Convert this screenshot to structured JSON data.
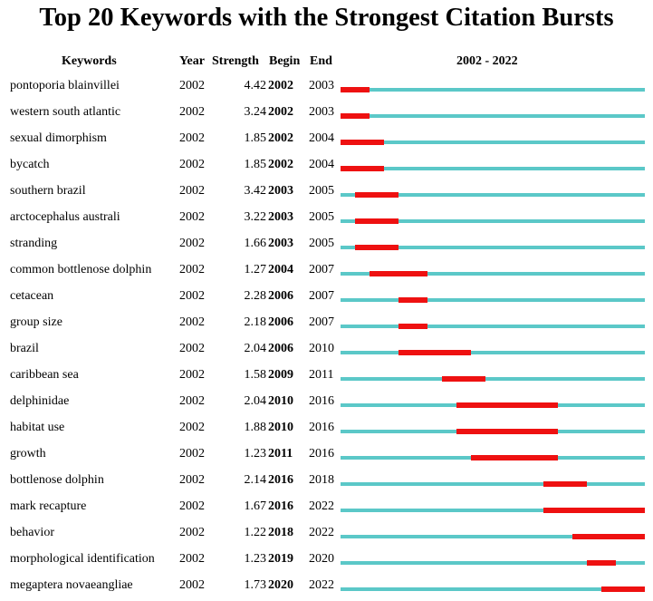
{
  "title": "Top 20 Keywords with the Strongest Citation Bursts",
  "headers": {
    "keywords": "Keywords",
    "year": "Year",
    "strength": "Strength",
    "begin": "Begin",
    "end": "End",
    "range": "2002 - 2022"
  },
  "colors": {
    "baseline": "#5bc8c8",
    "burst": "#ee1111"
  },
  "chart_data": {
    "type": "table",
    "range": [
      2002,
      2022
    ],
    "rows": [
      {
        "keyword": "pontoporia blainvillei",
        "year": "2002",
        "strength": "4.42",
        "begin": "2002",
        "end": "2003"
      },
      {
        "keyword": "western south atlantic",
        "year": "2002",
        "strength": "3.24",
        "begin": "2002",
        "end": "2003"
      },
      {
        "keyword": "sexual dimorphism",
        "year": "2002",
        "strength": "1.85",
        "begin": "2002",
        "end": "2004"
      },
      {
        "keyword": "bycatch",
        "year": "2002",
        "strength": "1.85",
        "begin": "2002",
        "end": "2004"
      },
      {
        "keyword": "southern brazil",
        "year": "2002",
        "strength": "3.42",
        "begin": "2003",
        "end": "2005"
      },
      {
        "keyword": "arctocephalus australi",
        "year": "2002",
        "strength": "3.22",
        "begin": "2003",
        "end": "2005"
      },
      {
        "keyword": "stranding",
        "year": "2002",
        "strength": "1.66",
        "begin": "2003",
        "end": "2005"
      },
      {
        "keyword": "common bottlenose dolphin",
        "year": "2002",
        "strength": "1.27",
        "begin": "2004",
        "end": "2007"
      },
      {
        "keyword": "cetacean",
        "year": "2002",
        "strength": "2.28",
        "begin": "2006",
        "end": "2007"
      },
      {
        "keyword": "group size",
        "year": "2002",
        "strength": "2.18",
        "begin": "2006",
        "end": "2007"
      },
      {
        "keyword": "brazil",
        "year": "2002",
        "strength": "2.04",
        "begin": "2006",
        "end": "2010"
      },
      {
        "keyword": "caribbean sea",
        "year": "2002",
        "strength": "1.58",
        "begin": "2009",
        "end": "2011"
      },
      {
        "keyword": "delphinidae",
        "year": "2002",
        "strength": "2.04",
        "begin": "2010",
        "end": "2016"
      },
      {
        "keyword": "habitat use",
        "year": "2002",
        "strength": "1.88",
        "begin": "2010",
        "end": "2016"
      },
      {
        "keyword": "growth",
        "year": "2002",
        "strength": "1.23",
        "begin": "2011",
        "end": "2016"
      },
      {
        "keyword": "bottlenose dolphin",
        "year": "2002",
        "strength": "2.14",
        "begin": "2016",
        "end": "2018"
      },
      {
        "keyword": "mark recapture",
        "year": "2002",
        "strength": "1.67",
        "begin": "2016",
        "end": "2022"
      },
      {
        "keyword": "behavior",
        "year": "2002",
        "strength": "1.22",
        "begin": "2018",
        "end": "2022"
      },
      {
        "keyword": "morphological identification",
        "year": "2002",
        "strength": "1.23",
        "begin": "2019",
        "end": "2020"
      },
      {
        "keyword": "megaptera novaeangliae",
        "year": "2002",
        "strength": "1.73",
        "begin": "2020",
        "end": "2022"
      }
    ]
  }
}
